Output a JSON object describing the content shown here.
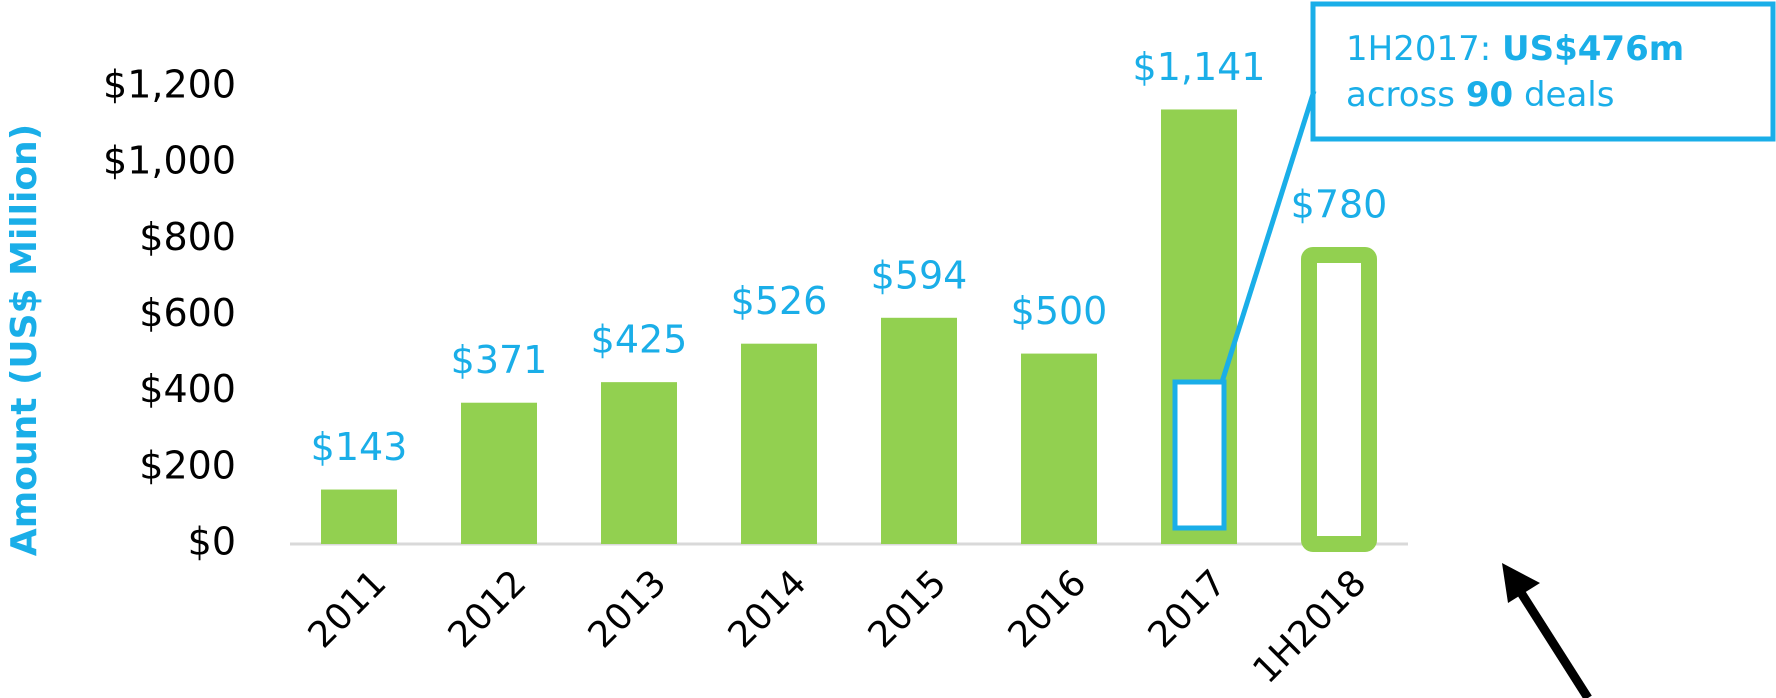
{
  "chart_data": {
    "type": "bar",
    "y_label": "Amount (US$ Million)",
    "categories": [
      "2011",
      "2012",
      "2013",
      "2014",
      "2015",
      "2016",
      "2017",
      "1H2018"
    ],
    "values": [
      143,
      371,
      425,
      526,
      594,
      500,
      1141,
      780
    ],
    "value_labels": [
      "$143",
      "$371",
      "$425",
      "$526",
      "$594",
      "$500",
      "$1,141",
      "$780"
    ],
    "hollow": [
      false,
      false,
      false,
      false,
      false,
      false,
      false,
      true
    ],
    "color": "#92d050",
    "label_color": "#1aaee8",
    "ylim": [
      0,
      1200
    ],
    "yticks": [
      {
        "value": 0,
        "label": "$0"
      },
      {
        "value": 200,
        "label": "$200"
      },
      {
        "value": 400,
        "label": "$400"
      },
      {
        "value": 600,
        "label": "$600"
      },
      {
        "value": 800,
        "label": "$800"
      },
      {
        "value": 1000,
        "label": "$1,000"
      },
      {
        "value": 1200,
        "label": "$1,200"
      }
    ],
    "grid": false,
    "annotation": {
      "line1": [
        "1H2017:",
        "US$476m"
      ],
      "line2": [
        "across",
        "90",
        "deals"
      ]
    }
  }
}
